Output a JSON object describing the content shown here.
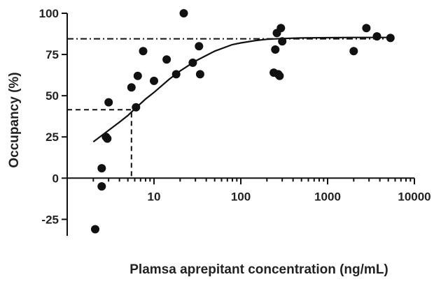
{
  "chart_data": {
    "type": "scatter",
    "title": "",
    "xlabel": "Plamsa aprepitant concentration (ng/mL)",
    "ylabel": "Occupancy (%)",
    "x_scale": "log",
    "xlim": [
      1,
      10000
    ],
    "ylim": [
      -35,
      100
    ],
    "x_ticks": [
      10,
      100,
      1000,
      10000
    ],
    "x_tick_labels": [
      "10",
      "100",
      "1000",
      "10000"
    ],
    "y_ticks": [
      -25,
      0,
      25,
      50,
      75,
      100
    ],
    "y_tick_labels": [
      "-25",
      "0",
      "25",
      "50",
      "75",
      "100"
    ],
    "grid": false,
    "series": [
      {
        "marker": "filled-circle",
        "color": "#111111",
        "x": [
          2.1,
          2.5,
          2.5,
          2.8,
          2.9,
          3.0,
          5.5,
          6.2,
          6.5,
          7.5,
          10,
          14,
          18,
          22,
          28,
          33,
          34,
          240,
          250,
          260,
          270,
          280,
          290,
          300,
          2000,
          2800,
          3700,
          5300
        ],
        "y": [
          -31,
          6,
          -5,
          25,
          24,
          46,
          55,
          43,
          62,
          77,
          59,
          72,
          63,
          100,
          70,
          80,
          63,
          64,
          78,
          88,
          63,
          62,
          91,
          83,
          77,
          91,
          86,
          85
        ]
      }
    ],
    "fit_curve": {
      "x": [
        2,
        3,
        4,
        5,
        6,
        8,
        10,
        15,
        20,
        30,
        50,
        80,
        100,
        150,
        200,
        300,
        500,
        1000,
        2000,
        5000
      ],
      "y": [
        22,
        29,
        34,
        38,
        42,
        48,
        52,
        60,
        65,
        71,
        77,
        81,
        82,
        83.5,
        84.2,
        84.7,
        85,
        85.2,
        85.3,
        85.3
      ]
    },
    "reference_lines": [
      {
        "style": "dashed",
        "x": 5.5,
        "y": 41.5
      },
      {
        "style": "dash-dot",
        "y": 84.5
      }
    ]
  }
}
